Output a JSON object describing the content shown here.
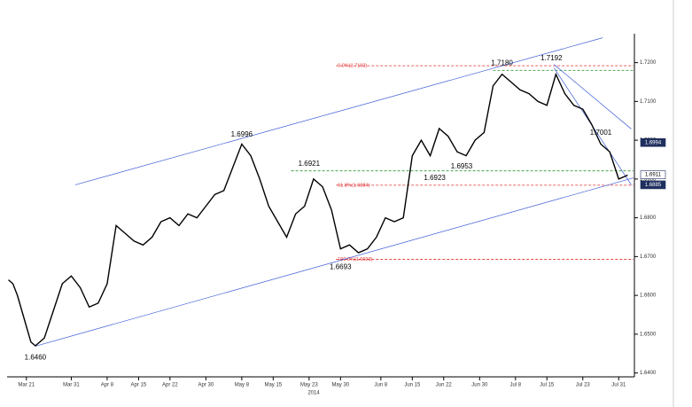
{
  "chart_data": {
    "type": "line",
    "x": [
      -4,
      -3,
      -2,
      0,
      1,
      2,
      4,
      6,
      8,
      10,
      12,
      14,
      16,
      18,
      20,
      22,
      24,
      26,
      28,
      30,
      32,
      34,
      36,
      38,
      40,
      42,
      44,
      46,
      48,
      50,
      52,
      54,
      56,
      58,
      60,
      62,
      64,
      66,
      68,
      70,
      72,
      74,
      76,
      78,
      80,
      82,
      84,
      86,
      88,
      90,
      92,
      94,
      96,
      98,
      100,
      102,
      104,
      106,
      108,
      110,
      112,
      114,
      116,
      118,
      120,
      122,
      124,
      126,
      128,
      130,
      132,
      134
    ],
    "series": [
      {
        "name": "GBP/USD",
        "color": "#000000",
        "values": [
          1.664,
          1.663,
          1.66,
          1.652,
          1.648,
          1.647,
          1.649,
          1.656,
          1.663,
          1.665,
          1.662,
          1.657,
          1.658,
          1.663,
          1.678,
          1.676,
          1.674,
          1.673,
          1.675,
          1.679,
          1.68,
          1.678,
          1.681,
          1.68,
          1.683,
          1.686,
          1.687,
          1.693,
          1.699,
          1.696,
          1.69,
          1.683,
          1.679,
          1.675,
          1.681,
          1.683,
          1.69,
          1.688,
          1.682,
          1.672,
          1.673,
          1.671,
          1.672,
          1.675,
          1.68,
          1.679,
          1.68,
          1.696,
          1.7,
          1.696,
          1.703,
          1.701,
          1.697,
          1.696,
          1.7,
          1.702,
          1.714,
          1.717,
          1.715,
          1.713,
          1.712,
          1.71,
          1.709,
          1.717,
          1.712,
          1.709,
          1.708,
          1.704,
          1.699,
          1.697,
          1.69,
          1.691
        ]
      }
    ],
    "xlim": [
      -4.3,
      135.3
    ],
    "ylim": [
      1.639,
      1.727
    ],
    "xticks": [
      {
        "value": 0,
        "label": "Mar 21"
      },
      {
        "value": 10,
        "label": "Mar 31"
      },
      {
        "value": 18,
        "label": "Apr 8"
      },
      {
        "value": 25,
        "label": "Apr 15"
      },
      {
        "value": 32,
        "label": "Apr 22"
      },
      {
        "value": 40,
        "label": "Apr 30"
      },
      {
        "value": 48,
        "label": "May 8"
      },
      {
        "value": 55,
        "label": "May 15"
      },
      {
        "value": 63,
        "label": "May 23"
      },
      {
        "value": 70,
        "label": "May 30"
      },
      {
        "value": 79,
        "label": "Jun 8"
      },
      {
        "value": 86,
        "label": "Jun 15"
      },
      {
        "value": 93,
        "label": "Jun 22"
      },
      {
        "value": 101,
        "label": "Jun 30"
      },
      {
        "value": 109,
        "label": "Jul 8"
      },
      {
        "value": 116,
        "label": "Jul 15"
      },
      {
        "value": 124,
        "label": "Jul 23"
      },
      {
        "value": 132,
        "label": "Jul 31"
      }
    ],
    "year_label": "2014",
    "yticks": [
      {
        "value": 1.64,
        "label": "1.6400"
      },
      {
        "value": 1.65,
        "label": "1.6500"
      },
      {
        "value": 1.66,
        "label": "1.6600"
      },
      {
        "value": 1.67,
        "label": "1.6700"
      },
      {
        "value": 1.68,
        "label": "1.6800"
      },
      {
        "value": 1.69,
        "label": "1.6900"
      },
      {
        "value": 1.7,
        "label": "1.7000"
      },
      {
        "value": 1.71,
        "label": "1.7100"
      },
      {
        "value": 1.72,
        "label": "1.7200"
      }
    ],
    "annotations": [
      {
        "x": 2,
        "y": 1.646,
        "label": "1.6460"
      },
      {
        "x": 48,
        "y": 1.6996,
        "label": "1.6996"
      },
      {
        "x": 63,
        "y": 1.6921,
        "label": "1.6921"
      },
      {
        "x": 70,
        "y": 1.6693,
        "label": "1.6693"
      },
      {
        "x": 91,
        "y": 1.6923,
        "label": "1.6923"
      },
      {
        "x": 97,
        "y": 1.6953,
        "label": "1.6953"
      },
      {
        "x": 106,
        "y": 1.718,
        "label": "1.7180"
      },
      {
        "x": 117,
        "y": 1.7192,
        "label": "1.7192"
      },
      {
        "x": 128,
        "y": 1.7001,
        "label": "1.7001"
      }
    ],
    "levels": [
      {
        "y": 1.7192,
        "x_start": 69,
        "color": "#e03030",
        "label": "0.0%(1.7192)"
      },
      {
        "y": 1.718,
        "x_start": 104,
        "color": "#2a9a2a"
      },
      {
        "y": 1.6921,
        "x_start": 59,
        "color": "#2a9a2a"
      },
      {
        "y": 1.6884,
        "x_start": 69,
        "color": "#e03030",
        "label": "61.8%(1.6884)"
      },
      {
        "y": 1.6693,
        "x_start": 69,
        "color": "#e03030",
        "label": "100.0%(1.6693)"
      }
    ],
    "trend_lines": [
      {
        "x": [
          10.9,
          128.4
        ],
        "y": [
          1.6885,
          1.7264
        ],
        "color": "#3b5bd6"
      },
      {
        "x": [
          2,
          135.3
        ],
        "y": [
          1.6469,
          1.6903
        ],
        "color": "#3b5bd6"
      },
      {
        "x": [
          117.6,
          134.8
        ],
        "y": [
          1.7195,
          1.7029
        ],
        "color": "#3b5bd6"
      },
      {
        "x": [
          117.6,
          134.8
        ],
        "y": [
          1.7186,
          1.6885
        ],
        "color": "#3b5bd6"
      }
    ],
    "price_tags": [
      {
        "y": 1.6994,
        "label": "1.6994",
        "dark": true
      },
      {
        "y": 1.6911,
        "label": "1.6911",
        "dark": false
      },
      {
        "y": 1.6885,
        "label": "1.6885",
        "dark": true
      }
    ]
  }
}
